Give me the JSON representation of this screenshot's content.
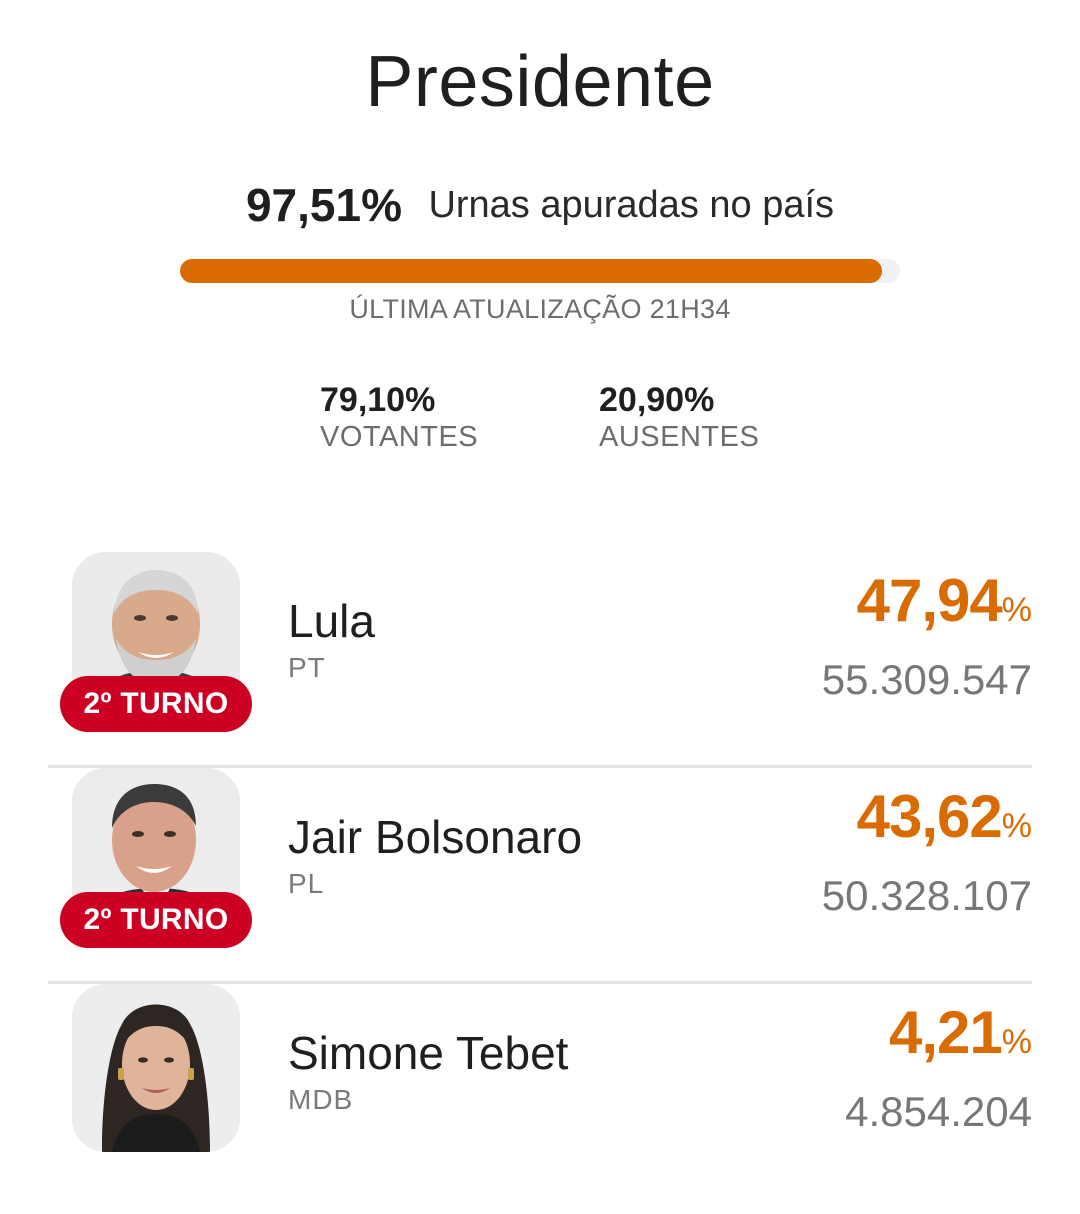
{
  "header": {
    "title": "Presidente"
  },
  "progress": {
    "percent_text": "97,51%",
    "label": "Urnas apuradas no país",
    "fill_fraction": 0.9751,
    "bar_color": "#d96b00"
  },
  "updated": {
    "text": "ÚLTIMA ATUALIZAÇÃO 21H34"
  },
  "stats": {
    "voters": {
      "value": "79,10%",
      "label": "VOTANTES"
    },
    "absent": {
      "value": "20,90%",
      "label": "AUSENTES"
    }
  },
  "candidates": [
    {
      "name": "Lula",
      "party": "PT",
      "percent": "47,94",
      "percent_sign": "%",
      "votes": "55.309.547",
      "badge": "2º TURNO"
    },
    {
      "name": "Jair Bolsonaro",
      "party": "PL",
      "percent": "43,62",
      "percent_sign": "%",
      "votes": "50.328.107",
      "badge": "2º TURNO"
    },
    {
      "name": "Simone Tebet",
      "party": "MDB",
      "percent": "4,21",
      "percent_sign": "%",
      "votes": "4.854.204",
      "badge": ""
    }
  ],
  "colors": {
    "accent": "#d96b00",
    "badge": "#cc0022",
    "divider": "#e4e4e4"
  }
}
